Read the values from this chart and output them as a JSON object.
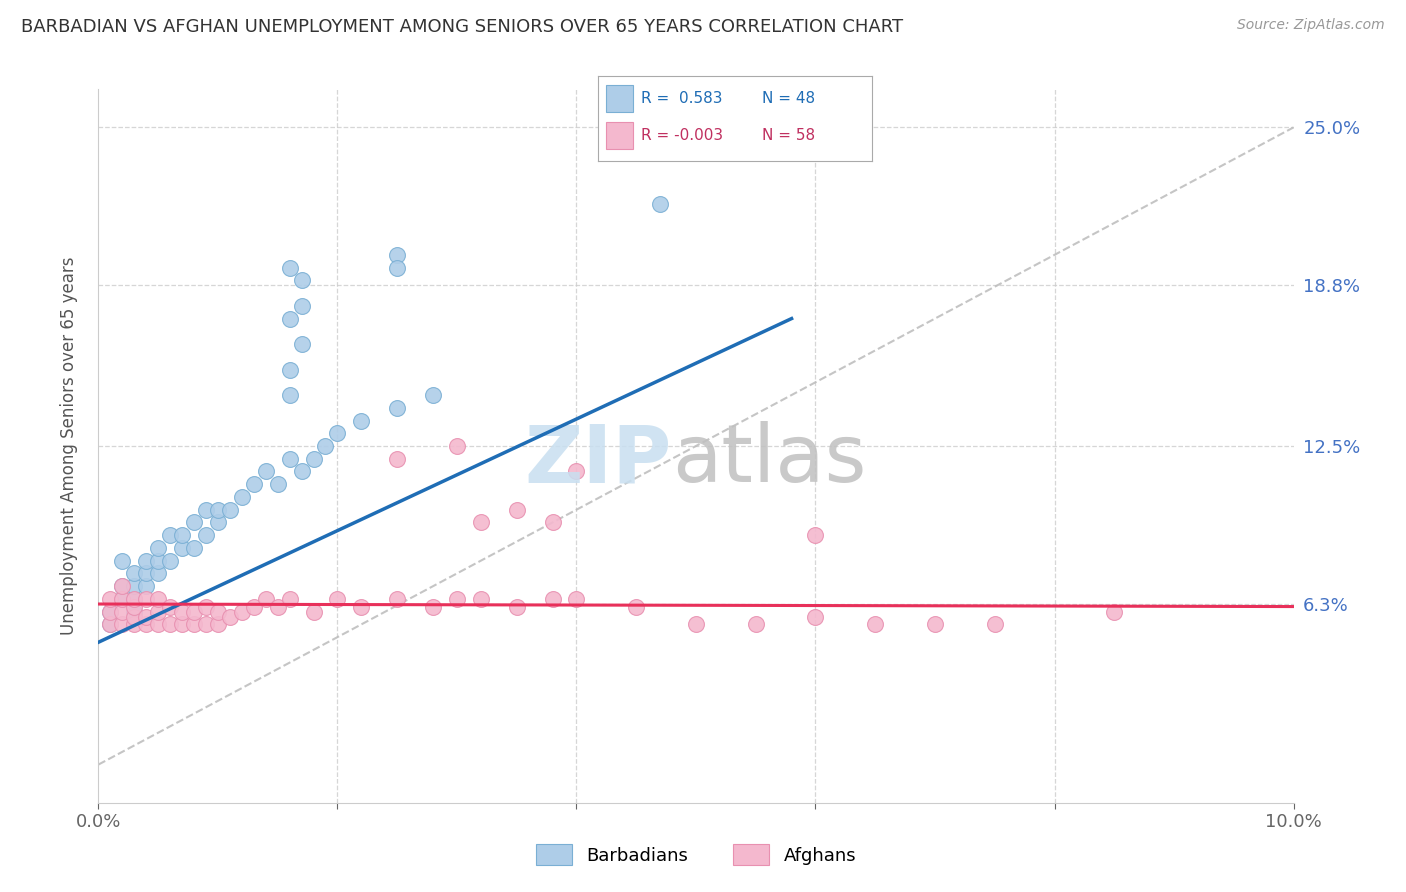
{
  "title": "BARBADIAN VS AFGHAN UNEMPLOYMENT AMONG SENIORS OVER 65 YEARS CORRELATION CHART",
  "source": "Source: ZipAtlas.com",
  "ylabel": "Unemployment Among Seniors over 65 years",
  "xlim": [
    0.0,
    0.1
  ],
  "ylim": [
    -0.015,
    0.265
  ],
  "yticks_right": [
    0.063,
    0.125,
    0.188,
    0.25
  ],
  "yticklabels_right": [
    "6.3%",
    "12.5%",
    "18.8%",
    "25.0%"
  ],
  "barbadian_color": "#aecde8",
  "afghan_color": "#f4b8ce",
  "barbadian_edge": "#7aafd4",
  "afghan_edge": "#e890b0",
  "line_barbadian": "#1f6db5",
  "line_afghan": "#e8305a",
  "ref_line_color": "#bbbbbb",
  "watermark_zip_color": "#c8dff0",
  "watermark_atlas_color": "#c0c0c0",
  "background_color": "#ffffff",
  "grid_color": "#cccccc",
  "barbadian_x": [
    0.001,
    0.001,
    0.002,
    0.002,
    0.002,
    0.003,
    0.003,
    0.003,
    0.003,
    0.004,
    0.004,
    0.004,
    0.005,
    0.005,
    0.005,
    0.006,
    0.006,
    0.007,
    0.007,
    0.008,
    0.008,
    0.009,
    0.009,
    0.01,
    0.01,
    0.011,
    0.012,
    0.013,
    0.014,
    0.015,
    0.016,
    0.017,
    0.018,
    0.019,
    0.02,
    0.022,
    0.025,
    0.028,
    0.016,
    0.017,
    0.025,
    0.016,
    0.017,
    0.016,
    0.017,
    0.025,
    0.016,
    0.047
  ],
  "barbadian_y": [
    0.055,
    0.06,
    0.065,
    0.07,
    0.08,
    0.06,
    0.065,
    0.07,
    0.075,
    0.07,
    0.075,
    0.08,
    0.075,
    0.08,
    0.085,
    0.08,
    0.09,
    0.085,
    0.09,
    0.085,
    0.095,
    0.09,
    0.1,
    0.095,
    0.1,
    0.1,
    0.105,
    0.11,
    0.115,
    0.11,
    0.12,
    0.115,
    0.12,
    0.125,
    0.13,
    0.135,
    0.14,
    0.145,
    0.195,
    0.19,
    0.2,
    0.155,
    0.18,
    0.145,
    0.165,
    0.195,
    0.175,
    0.22
  ],
  "afghan_x": [
    0.001,
    0.001,
    0.001,
    0.002,
    0.002,
    0.002,
    0.002,
    0.003,
    0.003,
    0.003,
    0.003,
    0.004,
    0.004,
    0.004,
    0.005,
    0.005,
    0.005,
    0.006,
    0.006,
    0.007,
    0.007,
    0.008,
    0.008,
    0.009,
    0.009,
    0.01,
    0.01,
    0.011,
    0.012,
    0.013,
    0.014,
    0.015,
    0.016,
    0.018,
    0.02,
    0.022,
    0.025,
    0.028,
    0.03,
    0.032,
    0.035,
    0.038,
    0.04,
    0.045,
    0.05,
    0.055,
    0.06,
    0.065,
    0.07,
    0.075,
    0.032,
    0.035,
    0.038,
    0.06,
    0.085,
    0.025,
    0.03,
    0.04
  ],
  "afghan_y": [
    0.055,
    0.06,
    0.065,
    0.055,
    0.06,
    0.065,
    0.07,
    0.055,
    0.058,
    0.062,
    0.065,
    0.055,
    0.058,
    0.065,
    0.055,
    0.06,
    0.065,
    0.055,
    0.062,
    0.055,
    0.06,
    0.055,
    0.06,
    0.055,
    0.062,
    0.055,
    0.06,
    0.058,
    0.06,
    0.062,
    0.065,
    0.062,
    0.065,
    0.06,
    0.065,
    0.062,
    0.065,
    0.062,
    0.065,
    0.065,
    0.062,
    0.065,
    0.065,
    0.062,
    0.055,
    0.055,
    0.058,
    0.055,
    0.055,
    0.055,
    0.095,
    0.1,
    0.095,
    0.09,
    0.06,
    0.12,
    0.125,
    0.115
  ],
  "barb_line_x": [
    0.0,
    0.058
  ],
  "barb_line_y": [
    0.048,
    0.175
  ],
  "afg_line_x": [
    0.0,
    0.1
  ],
  "afg_line_y": [
    0.063,
    0.062
  ],
  "ref_line_x": [
    0.0,
    0.1
  ],
  "ref_line_y": [
    0.0,
    0.25
  ]
}
